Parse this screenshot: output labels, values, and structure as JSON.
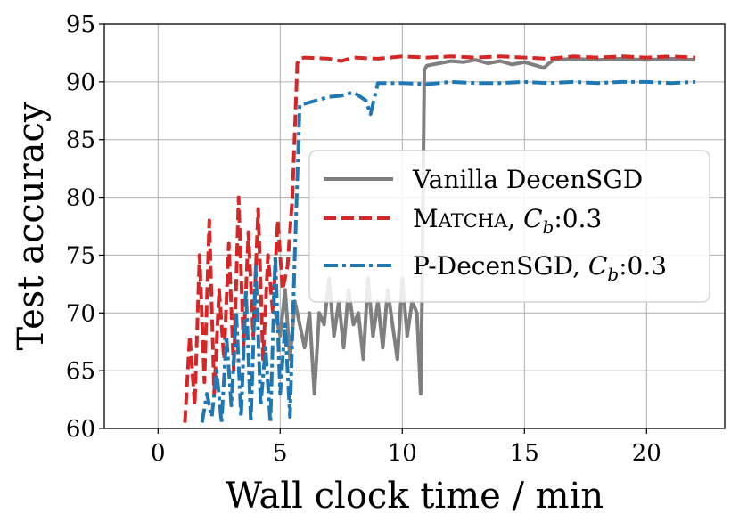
{
  "chart_data": {
    "type": "line",
    "title": "",
    "xlabel": "Wall clock time / min",
    "ylabel": "Test accuracy",
    "xlim": [
      -2.2,
      23.2
    ],
    "ylim": [
      60,
      95
    ],
    "xticks": [
      0,
      5,
      10,
      15,
      20
    ],
    "yticks": [
      60,
      65,
      70,
      75,
      80,
      85,
      90,
      95
    ],
    "xtick_labels": [
      "0",
      "5",
      "10",
      "15",
      "20"
    ],
    "ytick_labels": [
      "60",
      "65",
      "70",
      "75",
      "80",
      "85",
      "90",
      "95"
    ],
    "grid": true,
    "legend_position": "center-right",
    "series": [
      {
        "name": "Vanilla DecenSGD",
        "legend_parts": [
          "Vanilla DecenSGD"
        ],
        "color": "#7f7f7f",
        "style": "solid",
        "x": [
          4.8,
          5.0,
          5.2,
          5.4,
          5.6,
          5.8,
          6.0,
          6.2,
          6.4,
          6.6,
          6.8,
          7.0,
          7.2,
          7.4,
          7.6,
          7.8,
          8.0,
          8.2,
          8.4,
          8.6,
          8.8,
          9.0,
          9.2,
          9.4,
          9.6,
          9.8,
          10.0,
          10.2,
          10.4,
          10.6,
          10.75,
          10.8,
          10.9,
          11.0,
          11.5,
          12.0,
          12.5,
          13.0,
          13.5,
          14.0,
          14.5,
          15.0,
          15.5,
          15.8,
          16.0,
          16.2,
          17.0,
          18.0,
          19.0,
          20.0,
          21.0,
          22.0
        ],
        "y": [
          70,
          68,
          72,
          66,
          71,
          69,
          67,
          70,
          63,
          70,
          69,
          73,
          68,
          71,
          67,
          72,
          69,
          70,
          66,
          73,
          68,
          71,
          67,
          72,
          69,
          66,
          73,
          68,
          71,
          70,
          63,
          70,
          91,
          91.4,
          91.6,
          91.8,
          91.7,
          91.9,
          91.6,
          91.8,
          91.5,
          91.7,
          91.4,
          91.2,
          91.6,
          91.9,
          92.0,
          91.9,
          92.0,
          91.9,
          92.0,
          91.9
        ]
      },
      {
        "name": "MATCHA, Cb:0.3",
        "legend_parts": [
          "M",
          "ATCHA",
          ", ",
          "C",
          "b",
          ":0.3"
        ],
        "color": "#d62728",
        "style": "dashed",
        "x": [
          1.1,
          1.3,
          1.5,
          1.7,
          1.9,
          2.1,
          2.3,
          2.5,
          2.7,
          2.9,
          3.1,
          3.3,
          3.5,
          3.7,
          3.9,
          4.1,
          4.3,
          4.5,
          4.7,
          4.9,
          5.1,
          5.3,
          5.5,
          5.7,
          5.8,
          6.0,
          7.0,
          7.5,
          8.0,
          9.0,
          10.0,
          11.0,
          12.0,
          13.0,
          14.0,
          15.0,
          16.0,
          17.0,
          18.0,
          19.0,
          20.0,
          21.0,
          22.0
        ],
        "y": [
          60.5,
          68,
          62,
          75,
          64,
          78,
          63,
          72,
          66,
          76,
          65,
          80,
          67,
          77,
          68,
          79,
          66,
          75,
          70,
          78,
          72,
          74,
          80,
          91.6,
          92.0,
          92.1,
          92.0,
          91.8,
          92.1,
          92.0,
          92.2,
          92.1,
          92.2,
          92.1,
          92.2,
          92.1,
          92.0,
          92.2,
          92.1,
          92.2,
          92.1,
          92.2,
          92.1
        ]
      },
      {
        "name": "P-DecenSGD, Cb:0.3",
        "legend_parts": [
          "P-DecenSGD, ",
          "C",
          "b",
          ":0.3"
        ],
        "color": "#1f77b4",
        "style": "dashdot",
        "x": [
          1.8,
          2.0,
          2.2,
          2.4,
          2.6,
          2.8,
          3.0,
          3.2,
          3.4,
          3.6,
          3.8,
          4.0,
          4.2,
          4.4,
          4.6,
          4.8,
          5.0,
          5.2,
          5.4,
          5.6,
          5.8,
          6.0,
          6.5,
          7.0,
          7.5,
          8.0,
          8.5,
          8.7,
          9.0,
          10.0,
          11.0,
          12.0,
          13.0,
          14.0,
          15.0,
          16.0,
          17.0,
          18.0,
          19.0,
          20.0,
          21.0,
          22.0
        ],
        "y": [
          60.5,
          63,
          61,
          65,
          60.5,
          68,
          62,
          70,
          61,
          72,
          60.5,
          74,
          62,
          67,
          60.5,
          75,
          63,
          69,
          61,
          75,
          88,
          88.1,
          88.4,
          88.7,
          88.8,
          89.1,
          88.4,
          87.2,
          89.9,
          89.9,
          89.8,
          90.0,
          89.9,
          89.9,
          90.0,
          89.9,
          90.0,
          89.9,
          90.0,
          90.0,
          89.9,
          90.0
        ]
      }
    ]
  }
}
